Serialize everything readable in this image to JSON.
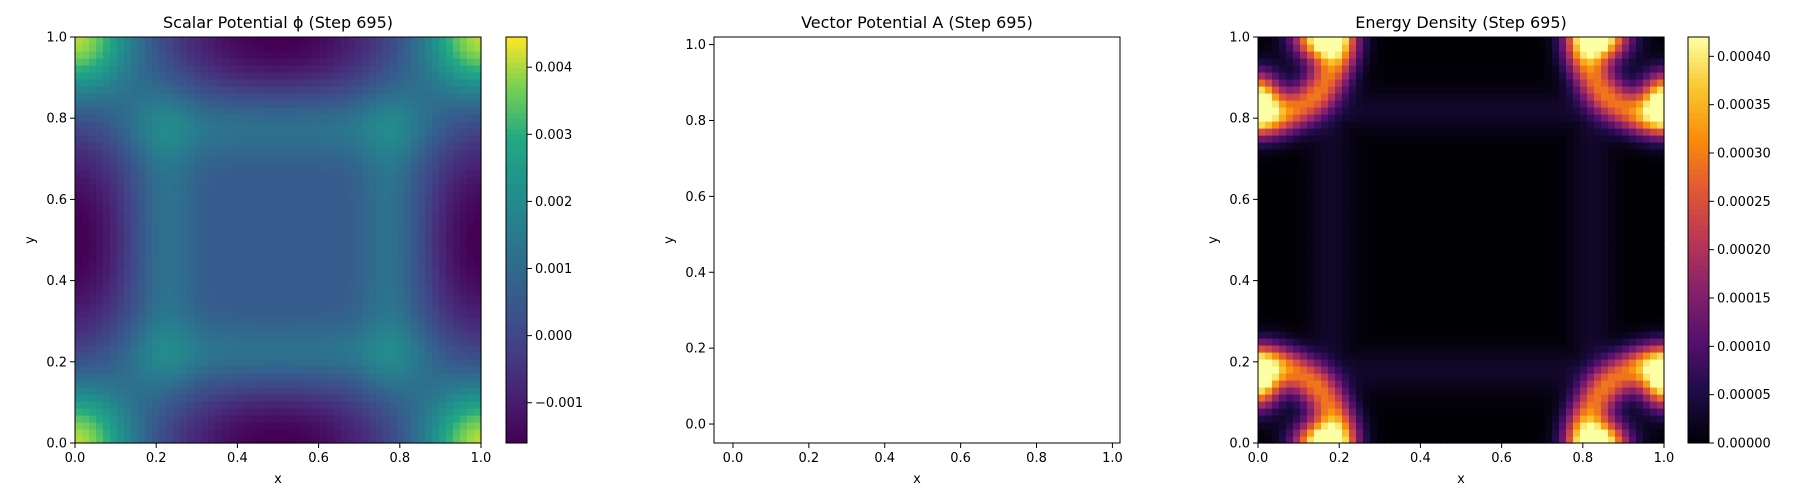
{
  "chart_data": [
    {
      "type": "heatmap",
      "title": "Scalar Potential ϕ (Step 695)",
      "xlabel": "x",
      "ylabel": "y",
      "xlim": [
        0,
        1
      ],
      "ylim": [
        0,
        1
      ],
      "xticks": [
        0.0,
        0.2,
        0.4,
        0.6,
        0.8,
        1.0
      ],
      "yticks": [
        0.0,
        0.2,
        0.4,
        0.6,
        0.8,
        1.0
      ],
      "tick_labels": [
        "0.0",
        "0.2",
        "0.4",
        "0.6",
        "0.8",
        "1.0"
      ],
      "colormap": "viridis",
      "field": "phi",
      "colorbar": {
        "min": -0.0016,
        "max": 0.00445,
        "ticks": [
          -0.001,
          0.0,
          0.001,
          0.002,
          0.003,
          0.004
        ],
        "tick_labels": [
          "−0.001",
          "0.000",
          "0.001",
          "0.002",
          "0.003",
          "0.004"
        ]
      }
    },
    {
      "type": "scatter",
      "title": "Vector Potential A (Step 695)",
      "xlabel": "x",
      "ylabel": "y",
      "xlim": [
        -0.05,
        1.02
      ],
      "ylim": [
        -0.05,
        1.02
      ],
      "xticks": [
        0.0,
        0.2,
        0.4,
        0.6,
        0.8,
        1.0
      ],
      "yticks": [
        0.0,
        0.2,
        0.4,
        0.6,
        0.8,
        1.0
      ],
      "tick_labels": [
        "0.0",
        "0.2",
        "0.4",
        "0.6",
        "0.8",
        "1.0"
      ],
      "empty": true
    },
    {
      "type": "heatmap",
      "title": "Energy Density (Step 695)",
      "xlabel": "x",
      "ylabel": "y",
      "xlim": [
        0,
        1
      ],
      "ylim": [
        0,
        1
      ],
      "xticks": [
        0.0,
        0.2,
        0.4,
        0.6,
        0.8,
        1.0
      ],
      "yticks": [
        0.0,
        0.2,
        0.4,
        0.6,
        0.8,
        1.0
      ],
      "tick_labels": [
        "0.0",
        "0.2",
        "0.4",
        "0.6",
        "0.8",
        "1.0"
      ],
      "colormap": "inferno",
      "field": "energy",
      "colorbar": {
        "min": 0.0,
        "max": 0.00042,
        "ticks": [
          0.0,
          5e-05,
          0.0001,
          0.00015,
          0.0002,
          0.00025,
          0.0003,
          0.00035,
          0.0004
        ],
        "tick_labels": [
          "0.00000",
          "0.00005",
          "0.00010",
          "0.00015",
          "0.00020",
          "0.00025",
          "0.00030",
          "0.00035",
          "0.00040"
        ]
      }
    }
  ]
}
